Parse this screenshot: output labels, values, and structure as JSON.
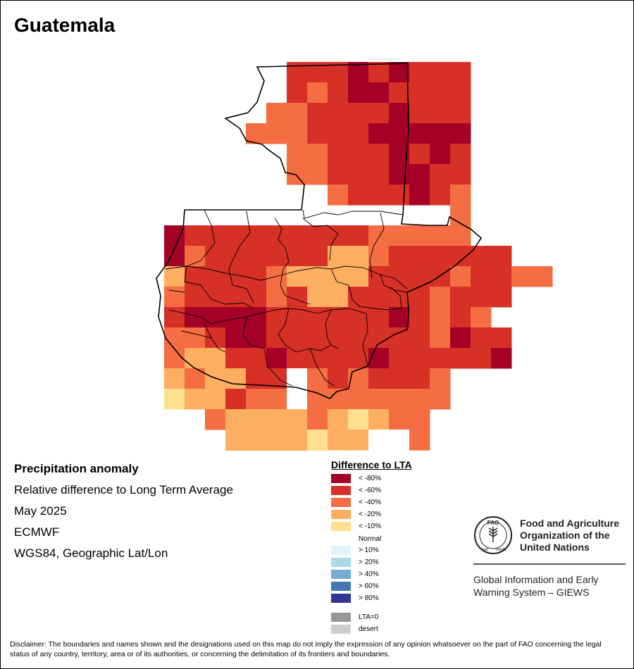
{
  "map_title": "Guatemala",
  "info": {
    "line1": "Precipitation anomaly",
    "line2": "Relative difference to Long Term Average",
    "line3": "May 2025",
    "line4": "ECMWF",
    "line5": "WGS84, Geographic Lat/Lon"
  },
  "legend": {
    "title": "Difference to LTA",
    "items": [
      {
        "label": "< -80%",
        "color": "#a50026"
      },
      {
        "label": "< -60%",
        "color": "#d73027"
      },
      {
        "label": "< -40%",
        "color": "#f46d43"
      },
      {
        "label": "< -20%",
        "color": "#fdae61"
      },
      {
        "label": "< -10%",
        "color": "#fee090"
      },
      {
        "label": "Normal",
        "color": "#ffffff"
      },
      {
        "label": "> 10%",
        "color": "#e0f3f8"
      },
      {
        "label": "> 20%",
        "color": "#abd9e9"
      },
      {
        "label": "> 40%",
        "color": "#74add1"
      },
      {
        "label": "> 60%",
        "color": "#4575b4"
      },
      {
        "label": "> 80%",
        "color": "#313695"
      },
      {
        "label": "LTA=0",
        "color": "#969696"
      },
      {
        "label": "desert",
        "color": "#cccccc"
      }
    ]
  },
  "org": {
    "fao_name_1": "Food and Agriculture",
    "fao_name_2": "Organization of the",
    "fao_name_3": "United Nations",
    "fao_letters": "FAO",
    "fao_motto_1": "FIAT",
    "fao_motto_2": "PANIS",
    "giews_1": "Global Information and Early",
    "giews_2": "Warning System – GIEWS"
  },
  "disclaimer": "Disclaimer: The boundaries and names shown and the designations used on this map do not imply the expression of any opinion whatsoever on the part of FAO concerning the legal status of any country, territory, area or of its authorities, or concerning the delimitation of its frontiers and boundaries.",
  "anomaly_grid": {
    "classes": {
      "A": "< -80%",
      "B": "< -60%",
      "C": "< -40%",
      "D": "< -20%",
      "E": "< -10%",
      "N": "Normal"
    },
    "rows": [
      "......BBBABABBB.......",
      "......BCBAABBBB.......",
      ".....CCBBBBABBB.......",
      "....CCCBBBAAAAA.......",
      "......CCBBBABAB.......",
      "......CCBBBAABB.......",
      "........CBBBABC.......",
      "..............C.......",
      "ABBBBBBBBBCCCCC.......",
      "ACBBBBBBDDCBBBBBB.....",
      "DBBBBCDDDDBBBBCBBCC...",
      "CBBBBCBDDBBBBCBBB.....",
      "BAAAABBBBBBABCBC......",
      "CCBAABBBBBBBBCABB.....",
      "CDDBBABBBBABBBBBA.....",
      "DCDDBBNCBCBBBC........",
      "EDDBCCNCCCCCCC........",
      "..CDDDDCDEDCC.........",
      "...DDDDEDDNNC.........",
      "...DDDDEE.NND........."
    ]
  }
}
